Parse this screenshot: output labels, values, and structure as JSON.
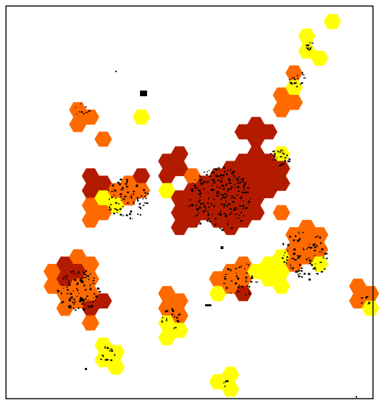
{
  "map": {
    "colors": {
      "background": "#ffffff",
      "border": "#000000",
      "low_density": "#ffff00",
      "medium_density": "#ff6a00",
      "high_density": "#b31b00",
      "buildings": "#000000"
    },
    "legend_visible": false,
    "frame_visible": true
  }
}
